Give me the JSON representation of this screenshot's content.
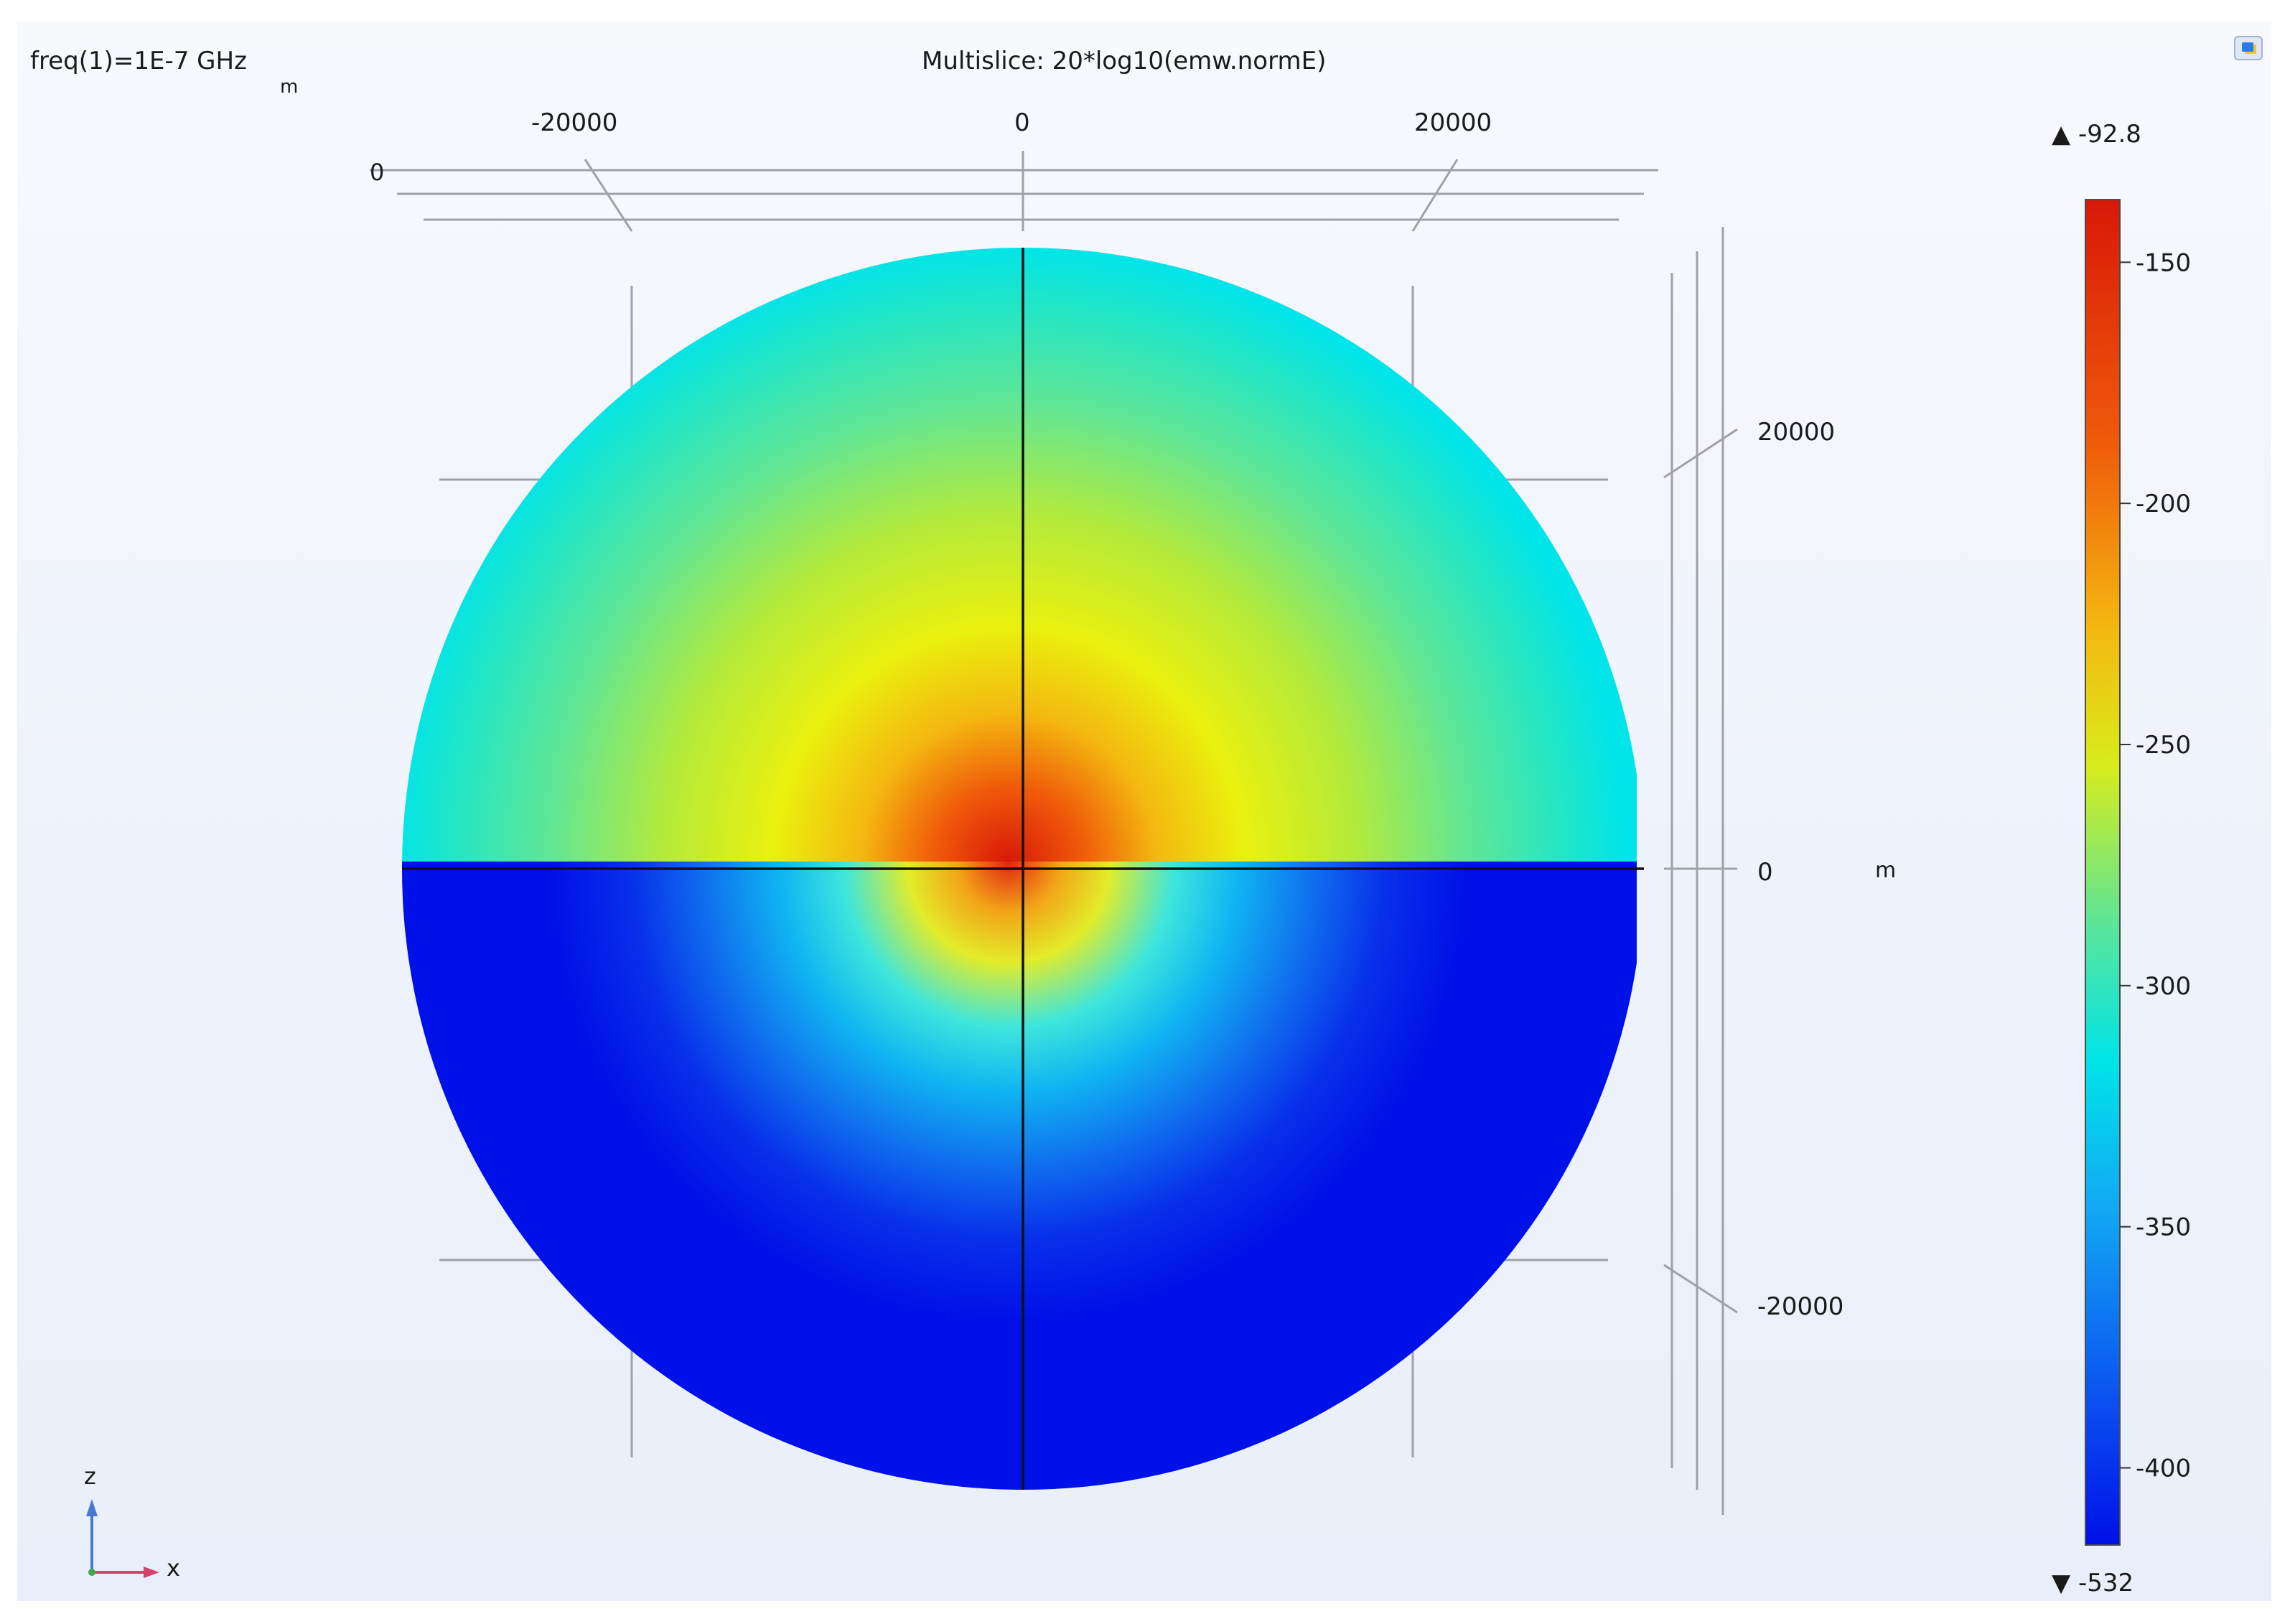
{
  "header": {
    "parameter_label": "freq(1)=1E-7 GHz",
    "parameter_unit": "m",
    "title": "Multislice: 20*log10(emw.normE)"
  },
  "axes": {
    "top_ticks": [
      "-20000",
      "0",
      "20000"
    ],
    "top_depth_label": "0",
    "right_ticks": [
      "20000",
      "0",
      "-20000"
    ],
    "right_unit": "m"
  },
  "orientation_triad": {
    "vertical_axis": "z",
    "horizontal_axis": "x"
  },
  "colors": {
    "colorscale": [
      "#0010e8",
      "#0a4cf0",
      "#12a8f4",
      "#00e4e8",
      "#5ae59a",
      "#d8ec1a",
      "#f4b810",
      "#f05a0a",
      "#d81808"
    ]
  },
  "chart_data": {
    "type": "heatmap",
    "title": "Multislice: 20*log10(emw.normE)",
    "xlabel": "",
    "ylabel": "",
    "unit": "m",
    "x_ticks": [
      -20000,
      0,
      20000
    ],
    "y_ticks": [
      20000,
      0,
      -20000
    ],
    "xlim": [
      -32000,
      32000
    ],
    "ylim": [
      -32000,
      32000
    ],
    "colorbar": {
      "max_marker": "▲ -92.8",
      "min_marker": "▼ -532",
      "max": -92.8,
      "min": -532,
      "ticks": [
        -150,
        -200,
        -250,
        -300,
        -350,
        -400
      ],
      "tick_labels": [
        "-150",
        "-200",
        "-250",
        "-300",
        "-350",
        "-400"
      ]
    }
  }
}
